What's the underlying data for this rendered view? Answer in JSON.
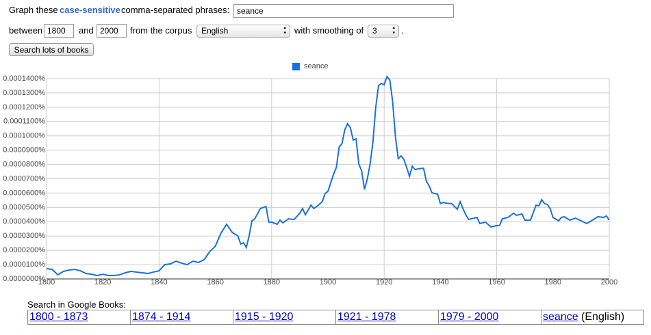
{
  "form": {
    "label_graph": "Graph these",
    "case_sensitive": "case-sensitive",
    "label_phrases": "comma-separated phrases:",
    "phrases": "seance",
    "label_between": "between",
    "start_year": "1800",
    "label_and": "and",
    "end_year": "2000",
    "label_corpus": "from the corpus",
    "corpus": "English",
    "label_smoothing": "with smoothing of",
    "smoothing": "3",
    "period": ".",
    "button": "Search lots of books"
  },
  "chart_data": {
    "type": "line",
    "x": [
      1800,
      1802,
      1804,
      1806,
      1808,
      1810,
      1812,
      1814,
      1816,
      1818,
      1820,
      1822,
      1824,
      1826,
      1828,
      1830,
      1832,
      1834,
      1836,
      1838,
      1840,
      1842,
      1844,
      1846,
      1848,
      1850,
      1852,
      1854,
      1856,
      1858,
      1860,
      1862,
      1864,
      1866,
      1868,
      1869,
      1870,
      1871,
      1872,
      1873,
      1874,
      1876,
      1878,
      1879,
      1880,
      1882,
      1883,
      1884,
      1886,
      1888,
      1890,
      1891,
      1892,
      1894,
      1895,
      1896,
      1898,
      1899,
      1900,
      1902,
      1903,
      1904,
      1905,
      1906,
      1907,
      1908,
      1909,
      1910,
      1911,
      1912,
      1913,
      1914,
      1915,
      1916,
      1917,
      1918,
      1919,
      1920,
      1921,
      1922,
      1923,
      1924,
      1925,
      1926,
      1927,
      1928,
      1929,
      1930,
      1931,
      1932,
      1934,
      1935,
      1936,
      1937,
      1938,
      1939,
      1940,
      1941,
      1942,
      1944,
      1946,
      1947,
      1948,
      1949,
      1950,
      1952,
      1953,
      1954,
      1956,
      1958,
      1959,
      1960,
      1961,
      1962,
      1964,
      1966,
      1967,
      1968,
      1969,
      1970,
      1972,
      1974,
      1975,
      1976,
      1977,
      1978,
      1979,
      1980,
      1982,
      1983,
      1984,
      1986,
      1988,
      1990,
      1992,
      1994,
      1996,
      1998,
      1999,
      2000
    ],
    "series": [
      {
        "name": "seance",
        "color": "#1a6fe3",
        "values": [
          7.2e-06,
          6.7e-06,
          2.9e-06,
          5.3e-06,
          6.2e-06,
          6.7e-06,
          5.7e-06,
          3.8e-06,
          3.3e-06,
          2.4e-06,
          3.3e-06,
          2.4e-06,
          2.4e-06,
          2.9e-06,
          4.3e-06,
          5.3e-06,
          4.8e-06,
          4.3e-06,
          3.8e-06,
          4.8e-06,
          5.7e-06,
          1e-05,
          1.05e-05,
          1.24e-05,
          1.1e-05,
          1e-05,
          1.24e-05,
          1.15e-05,
          1.34e-05,
          1.91e-05,
          2.29e-05,
          3.2e-05,
          3.82e-05,
          3.25e-05,
          3.01e-05,
          2.44e-05,
          2.53e-05,
          2.2e-05,
          3.01e-05,
          4.06e-05,
          4.2e-05,
          4.92e-05,
          5.06e-05,
          3.97e-05,
          3.97e-05,
          3.82e-05,
          4.11e-05,
          3.92e-05,
          4.2e-05,
          4.16e-05,
          4.59e-05,
          4.92e-05,
          4.49e-05,
          5.16e-05,
          4.92e-05,
          5.06e-05,
          5.4e-05,
          5.97e-05,
          6.12e-05,
          7.31e-05,
          7.79e-05,
          9.22e-05,
          9.46e-05,
          0.0001042,
          0.0001085,
          0.0001056,
          9.7e-05,
          9.79e-05,
          8.03e-05,
          7.55e-05,
          6.26e-05,
          6.98e-05,
          8.03e-05,
          9.56e-05,
          0.0001199,
          0.0001352,
          0.0001366,
          0.0001357,
          0.0001414,
          0.000139,
          0.0001242,
          9.94e-05,
          8.41e-05,
          8.6e-05,
          8.36e-05,
          7.79e-05,
          7.17e-05,
          7.88e-05,
          7.64e-05,
          7.69e-05,
          7.74e-05,
          6.83e-05,
          6.5e-05,
          6.02e-05,
          5.97e-05,
          5.92e-05,
          5.26e-05,
          5.35e-05,
          5.3e-05,
          5.26e-05,
          4.87e-05,
          5.4e-05,
          4.92e-05,
          4.49e-05,
          4.16e-05,
          4.25e-05,
          4.3e-05,
          3.87e-05,
          3.97e-05,
          3.63e-05,
          3.68e-05,
          3.73e-05,
          3.73e-05,
          4.2e-05,
          4.3e-05,
          4.59e-05,
          4.45e-05,
          4.49e-05,
          4.54e-05,
          4.11e-05,
          4.11e-05,
          5.16e-05,
          5.11e-05,
          5.54e-05,
          5.26e-05,
          5.21e-05,
          4.92e-05,
          4.3e-05,
          4.06e-05,
          4.3e-05,
          4.35e-05,
          4.11e-05,
          4.25e-05,
          4.06e-05,
          3.87e-05,
          4.11e-05,
          4.35e-05,
          4.3e-05,
          4.4e-05,
          4.11e-05
        ]
      }
    ],
    "xlim": [
      1800,
      2000
    ],
    "xticks": [
      1800,
      1820,
      1840,
      1860,
      1880,
      1900,
      1920,
      1940,
      1960,
      1980,
      2000
    ],
    "ylim": [
      0,
      0.00014
    ],
    "yticks": [
      {
        "value": 0,
        "label": "0.0000000%"
      },
      {
        "value": 1e-05,
        "label": "0.0000100%"
      },
      {
        "value": 2e-05,
        "label": "0.0000200%"
      },
      {
        "value": 3e-05,
        "label": "0.0000300%"
      },
      {
        "value": 4e-05,
        "label": "0.0000400%"
      },
      {
        "value": 5e-05,
        "label": "0.0000500%"
      },
      {
        "value": 6e-05,
        "label": "0.0000600%"
      },
      {
        "value": 7e-05,
        "label": "0.0000700%"
      },
      {
        "value": 8e-05,
        "label": "0.0000800%"
      },
      {
        "value": 9e-05,
        "label": "0.0000900%"
      },
      {
        "value": 0.0001,
        "label": "0.0001000%"
      },
      {
        "value": 0.00011,
        "label": "0.0001100%"
      },
      {
        "value": 0.00012,
        "label": "0.0001200%"
      },
      {
        "value": 0.00013,
        "label": "0.0001300%"
      },
      {
        "value": 0.00014,
        "label": "0.0001400%"
      }
    ],
    "grid": true,
    "legend": "top"
  },
  "books": {
    "title": "Search in Google Books:",
    "links": [
      "1800 - 1873",
      "1874 - 1914",
      "1915 - 1920",
      "1921 - 1978",
      "1979 - 2000"
    ],
    "term": "seance",
    "term_suffix": "(English)"
  }
}
